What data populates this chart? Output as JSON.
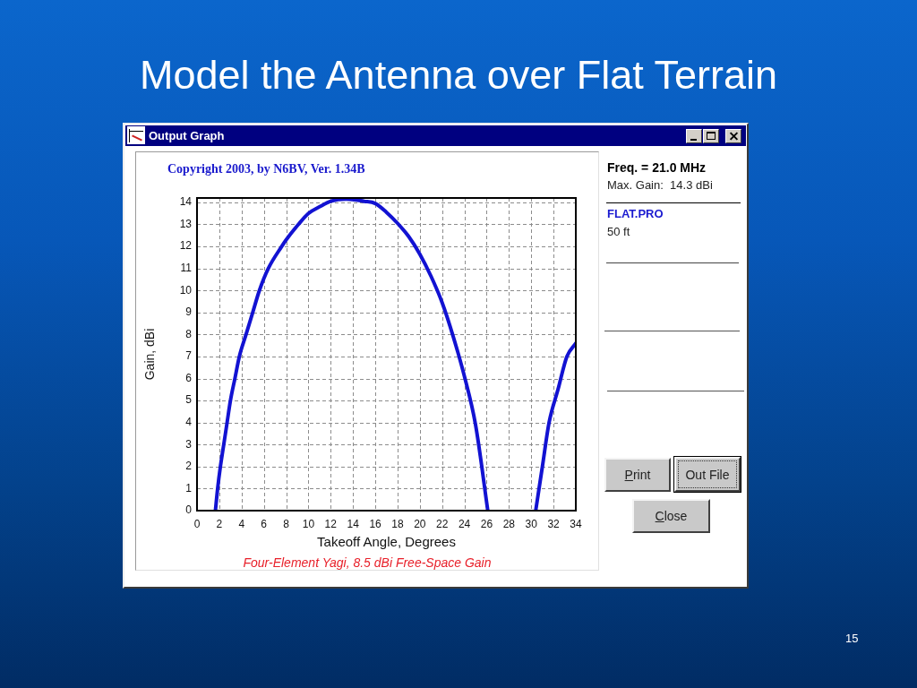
{
  "chart_data": {
    "type": "line",
    "title": "Model the Antenna over Flat Terrain",
    "subtitle": "Four-Element Yagi, 8.5 dBi Free-Space Gain",
    "xlabel": "Takeoff Angle, Degrees",
    "ylabel": "Gain, dBi",
    "x": [
      1.65,
      1.85,
      2.1,
      2.4,
      2.7,
      3.0,
      3.4,
      3.8,
      4.4,
      5.0,
      5.6,
      6.4,
      7.6,
      8.0,
      9.1,
      10,
      11,
      12,
      13.4,
      15,
      16,
      17,
      18,
      19,
      20,
      21,
      22,
      23,
      24,
      25,
      26.1,
      28,
      30.4,
      31,
      31.6,
      32.4,
      33.2,
      34
    ],
    "series": [
      {
        "color": "#1212d2",
        "values": [
          0,
          1,
          2,
          3,
          4,
          5,
          6,
          7,
          8,
          9,
          10,
          11,
          12,
          12.3,
          13,
          13.5,
          13.8,
          14.05,
          14.15,
          14.05,
          13.95,
          13.55,
          13.05,
          12.45,
          11.65,
          10.65,
          9.45,
          7.9,
          6.1,
          3.9,
          0,
          null,
          0,
          2,
          4,
          5.5,
          7,
          7.6
        ]
      }
    ],
    "xlim": [
      0,
      34
    ],
    "xticks": [
      0,
      2,
      4,
      6,
      8,
      10,
      12,
      14,
      16,
      18,
      20,
      22,
      24,
      26,
      28,
      30,
      32,
      34
    ],
    "ylim": [
      0,
      14.2
    ],
    "yticks": [
      0,
      1,
      2,
      3,
      4,
      5,
      6,
      7,
      8,
      9,
      10,
      11,
      12,
      13,
      14
    ],
    "grid": true,
    "marker": "none",
    "line_style": "solid",
    "annotations": [
      "Output Graph",
      "Copyright 2003, by N6BV, Ver. 1.34B",
      "Freq. = 21.0 MHz",
      "Max. Gain:  14.3 dBi",
      "FLAT.PRO",
      "50 ft",
      "Print",
      "Out File",
      "Close",
      "15"
    ]
  }
}
